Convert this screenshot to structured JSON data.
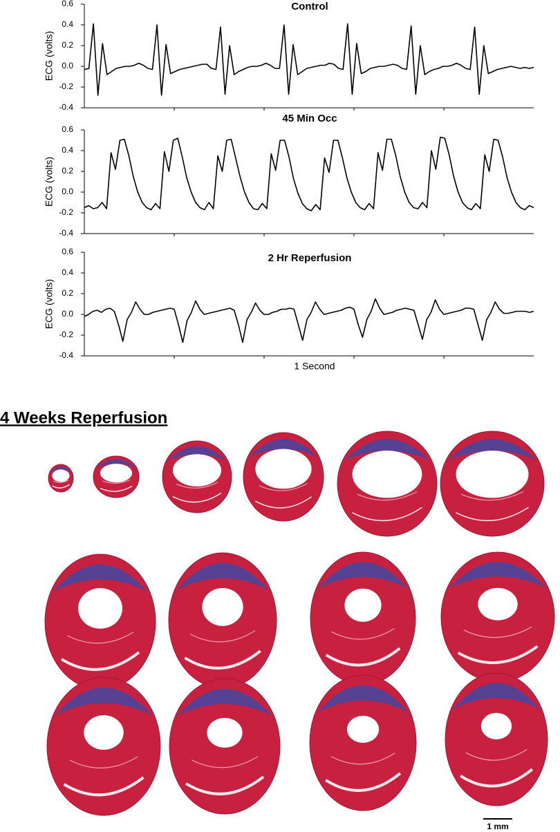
{
  "chart_data": [
    {
      "type": "line",
      "title": "Control",
      "ylabel": "ECG (volts)",
      "color": "#000000",
      "ylim": [
        -0.4,
        0.6
      ],
      "yticks": [
        -0.4,
        -0.2,
        {
          "value": 0,
          "label": "0.0"
        },
        0.2,
        0.4,
        0.6
      ],
      "values": [
        -0.03,
        -0.02,
        0.41,
        -0.28,
        0.22,
        -0.08,
        -0.05,
        -0.02,
        -0.01,
        0,
        0,
        0.01,
        0.03,
        0.01,
        -0.02,
        -0.03,
        0.4,
        -0.28,
        0.21,
        -0.07,
        -0.05,
        -0.03,
        -0.02,
        -0.01,
        0,
        0.01,
        0.02,
        0.02,
        -0.02,
        -0.03,
        0.38,
        -0.27,
        0.2,
        -0.08,
        -0.05,
        -0.03,
        -0.01,
        0,
        0,
        0.01,
        0.03,
        0.01,
        -0.02,
        -0.02,
        0.4,
        -0.27,
        0.21,
        -0.08,
        -0.05,
        -0.02,
        -0.01,
        0,
        0.01,
        0.01,
        0.03,
        0.02,
        -0.02,
        -0.03,
        0.41,
        -0.27,
        0.22,
        -0.07,
        -0.05,
        -0.02,
        -0.01,
        0,
        0,
        0.01,
        0.02,
        0.01,
        -0.02,
        -0.03,
        0.39,
        -0.27,
        0.2,
        -0.08,
        -0.05,
        -0.03,
        -0.02,
        0,
        0,
        0.01,
        0.03,
        0.01,
        -0.02,
        -0.03,
        0.38,
        -0.27,
        0.2,
        -0.07,
        -0.05,
        -0.03,
        -0.02,
        -0.01,
        0,
        -0.01,
        -0.02,
        -0.01,
        -0.02,
        -0.01
      ]
    },
    {
      "type": "line",
      "title": "45 Min Occ",
      "ylabel": "ECG (volts)",
      "color": "#000000",
      "ylim": [
        -0.4,
        0.6
      ],
      "yticks": [
        -0.4,
        -0.2,
        {
          "value": 0,
          "label": "0.0"
        },
        0.2,
        0.4,
        0.6
      ],
      "values": [
        -0.15,
        -0.13,
        -0.16,
        -0.15,
        -0.1,
        -0.16,
        0.38,
        0.22,
        0.5,
        0.51,
        0.35,
        0.15,
        0.0,
        -0.1,
        -0.15,
        -0.17,
        -0.11,
        -0.16,
        0.39,
        0.2,
        0.5,
        0.52,
        0.34,
        0.14,
        0.0,
        -0.1,
        -0.15,
        -0.17,
        -0.1,
        -0.16,
        0.35,
        0.2,
        0.5,
        0.51,
        0.33,
        0.15,
        0.0,
        -0.1,
        -0.16,
        -0.17,
        -0.11,
        -0.16,
        0.37,
        0.21,
        0.5,
        0.5,
        0.34,
        0.13,
        -0.01,
        -0.11,
        -0.16,
        -0.18,
        -0.12,
        -0.17,
        0.33,
        0.19,
        0.5,
        0.5,
        0.33,
        0.14,
        0.0,
        -0.1,
        -0.15,
        -0.17,
        -0.11,
        -0.16,
        0.38,
        0.21,
        0.51,
        0.51,
        0.35,
        0.15,
        0.0,
        -0.1,
        -0.15,
        -0.16,
        -0.1,
        -0.15,
        0.4,
        0.22,
        0.53,
        0.52,
        0.36,
        0.15,
        0.0,
        -0.1,
        -0.15,
        -0.17,
        -0.11,
        -0.16,
        0.36,
        0.2,
        0.51,
        0.5,
        0.34,
        0.14,
        0.0,
        -0.1,
        -0.15,
        -0.17,
        -0.13,
        -0.15
      ]
    },
    {
      "type": "line",
      "title": "2 Hr Reperfusion",
      "ylabel": "ECG (volts)",
      "xlabel": "1 Second",
      "color": "#000000",
      "ylim": [
        -0.4,
        0.6
      ],
      "yticks": [
        -0.4,
        -0.2,
        {
          "value": 0,
          "label": "0.0"
        },
        0.2,
        0.4,
        0.6
      ],
      "values": [
        -0.02,
        0.0,
        0.03,
        0.04,
        0.02,
        0.05,
        0.06,
        0.03,
        -0.1,
        -0.26,
        -0.05,
        0.02,
        0.12,
        0.05,
        0.0,
        0.0,
        0.02,
        0.03,
        0.04,
        0.05,
        0.06,
        0.05,
        -0.1,
        -0.27,
        -0.06,
        0.02,
        0.13,
        0.05,
        0.0,
        0.01,
        0.02,
        0.03,
        0.04,
        0.05,
        0.06,
        0.04,
        -0.1,
        -0.27,
        -0.05,
        0.02,
        0.11,
        0.04,
        0.0,
        0.0,
        0.02,
        0.03,
        0.05,
        0.05,
        0.06,
        0.05,
        -0.1,
        -0.25,
        -0.05,
        0.02,
        0.12,
        0.05,
        0.0,
        0.01,
        0.02,
        0.03,
        0.04,
        0.06,
        0.07,
        0.05,
        -0.1,
        -0.22,
        -0.05,
        0.03,
        0.15,
        0.06,
        0.0,
        0.01,
        0.02,
        0.04,
        0.05,
        0.06,
        0.05,
        0.04,
        -0.1,
        -0.24,
        -0.05,
        0.02,
        0.14,
        0.05,
        0.0,
        0.01,
        0.02,
        0.03,
        0.04,
        0.06,
        0.06,
        0.05,
        -0.1,
        -0.25,
        -0.05,
        0.02,
        0.12,
        0.05,
        0.01,
        0.01,
        0.02,
        0.03,
        0.03,
        0.03,
        0.02,
        0.03
      ]
    }
  ],
  "histology": {
    "title": "4 Weeks Reperfusion",
    "scale_label": "1 mm"
  }
}
